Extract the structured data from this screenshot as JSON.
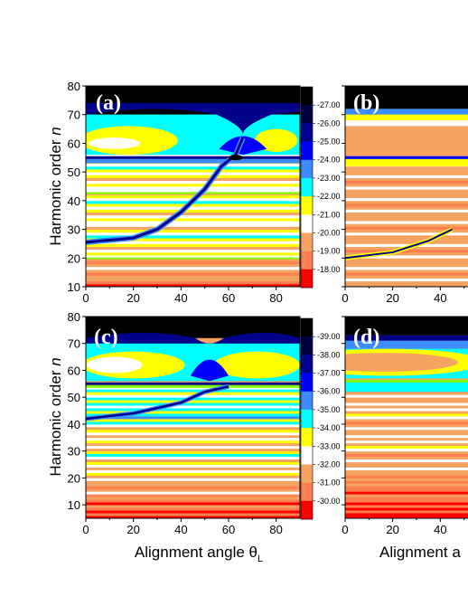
{
  "chart_data": [
    {
      "type": "heatmap",
      "panel_label": "(a)",
      "ylabel": "Harmonic order n",
      "xlim": [
        0,
        90
      ],
      "ylim": [
        10,
        80
      ],
      "x_ticks": [
        0,
        20,
        40,
        60,
        80
      ],
      "y_ticks": [
        10,
        20,
        30,
        40,
        50,
        60,
        70,
        80
      ],
      "colorbar_ticks": [
        "-27.00",
        "-26.00",
        "-25.00",
        "-24.00",
        "-23.00",
        "-22.00",
        "-21.00",
        "-20.00",
        "-19.00",
        "-18.00"
      ],
      "colorbar_colors": [
        "#000000",
        "#000044",
        "#00008b",
        "#0000ff",
        "#3c8cff",
        "#00ffff",
        "#ffff00",
        "#ffffff",
        "#f4a460",
        "#ff7f50",
        "#ff0000"
      ],
      "features": {
        "dark_top_above": 70,
        "cyan_band": [
          58,
          70
        ],
        "yellow_lobes_center": 60,
        "line_harmonic": 55,
        "minimum_curve": [
          [
            0,
            25.5
          ],
          [
            20,
            27
          ],
          [
            30,
            30
          ],
          [
            40,
            36
          ],
          [
            50,
            44
          ],
          [
            57,
            52
          ],
          [
            63,
            56
          ],
          [
            66,
            62
          ]
        ]
      }
    },
    {
      "type": "heatmap",
      "panel_label": "(b)",
      "xlim": [
        0,
        90
      ],
      "ylim": [
        10,
        80
      ],
      "x_ticks": [
        0,
        20,
        40
      ],
      "colorbar_ticks": [],
      "features": {
        "dark_top_above": 72,
        "line_harmonic": 55,
        "minimum_curve": [
          [
            0,
            20
          ],
          [
            20,
            22
          ],
          [
            35,
            26
          ],
          [
            45,
            30
          ]
        ]
      }
    },
    {
      "type": "heatmap",
      "panel_label": "(c)",
      "ylabel": "Harmonic order n",
      "xlabel": "Alignment angle θL",
      "xlim": [
        0,
        90
      ],
      "ylim": [
        5,
        80
      ],
      "x_ticks": [
        0,
        20,
        40,
        60,
        80
      ],
      "y_ticks": [
        10,
        20,
        30,
        40,
        50,
        60,
        70,
        80
      ],
      "colorbar_ticks": [
        "-39.00",
        "-38.00",
        "-37.00",
        "-36.00",
        "-35.00",
        "-34.00",
        "-33.00",
        "-32.00",
        "-31.00",
        "-30.00"
      ],
      "colorbar_colors": [
        "#000000",
        "#000044",
        "#00008b",
        "#0000ff",
        "#3c8cff",
        "#00ffff",
        "#ffff00",
        "#ffffff",
        "#f4a460",
        "#ff7f50",
        "#ff0000"
      ],
      "features": {
        "dark_top_above": 72,
        "cyan_band": [
          56,
          72
        ],
        "yellow_lobes_center": 62,
        "line_harmonic": 55,
        "minimum_curve": [
          [
            0,
            42
          ],
          [
            20,
            44
          ],
          [
            40,
            48
          ],
          [
            50,
            52
          ],
          [
            60,
            54
          ]
        ]
      }
    },
    {
      "type": "heatmap",
      "panel_label": "(d)",
      "xlabel": "Alignment a",
      "xlim": [
        0,
        90
      ],
      "ylim": [
        5,
        80
      ],
      "x_ticks": [
        0,
        20,
        40
      ],
      "colorbar_ticks": [],
      "features": {
        "dark_top_above": 73,
        "line_harmonic": 56
      }
    }
  ]
}
